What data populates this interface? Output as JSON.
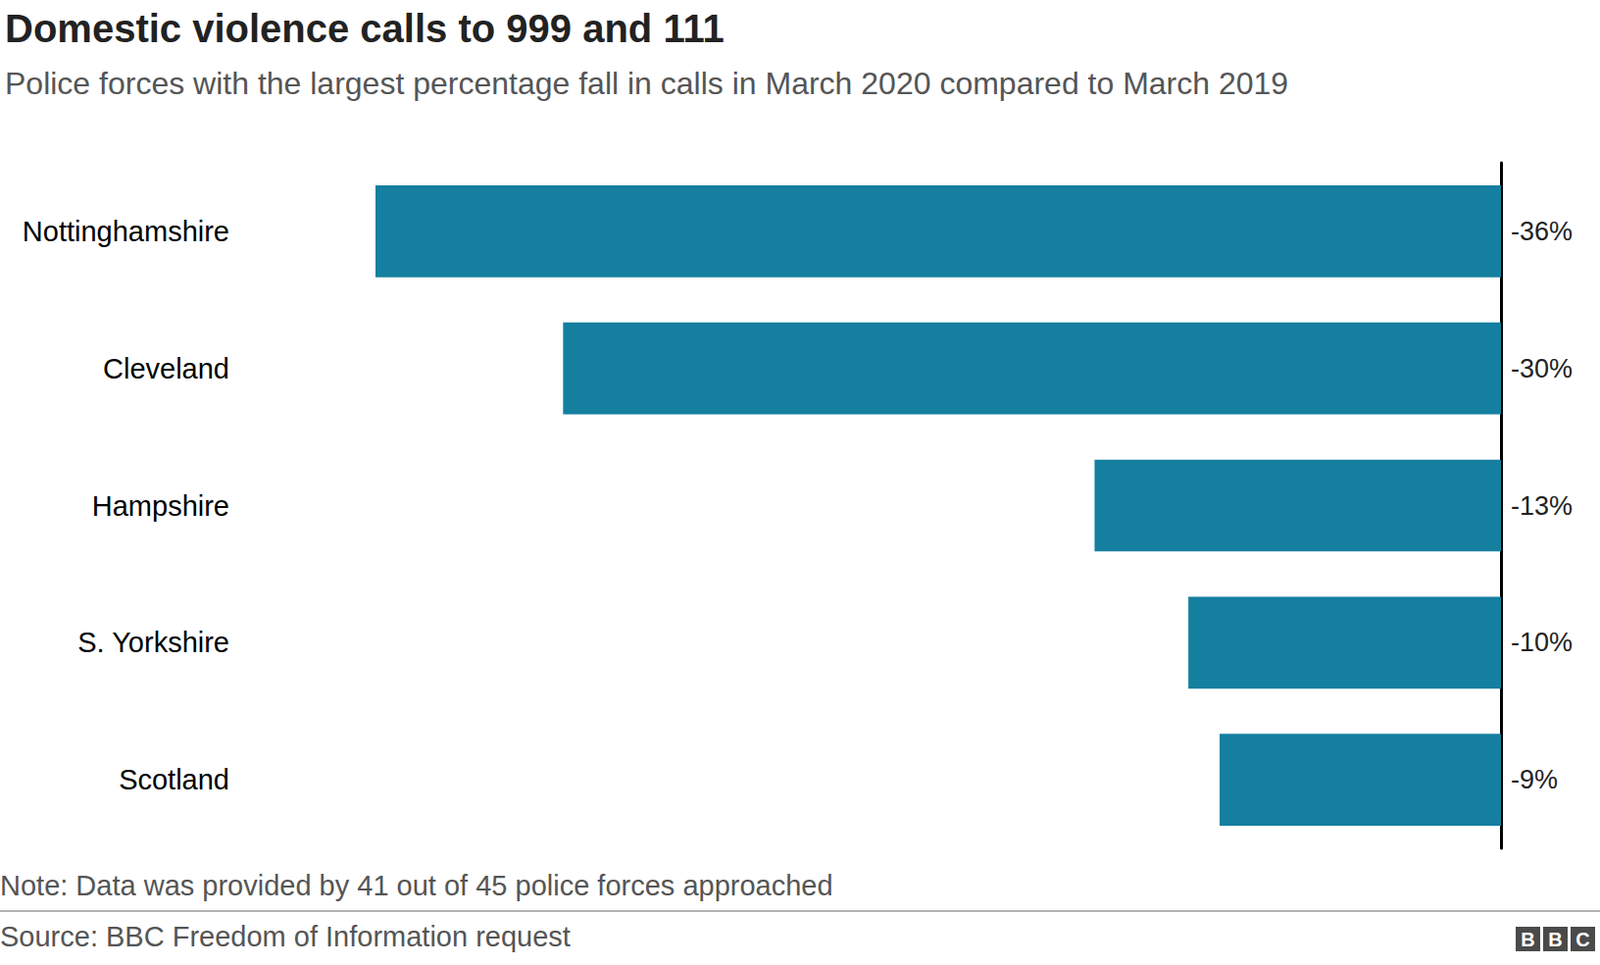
{
  "chart_data": {
    "type": "bar",
    "orientation": "horizontal",
    "title": "Domestic violence calls to 999 and 111",
    "subtitle": "Police forces with the largest percentage fall in calls in March 2020 compared to March 2019",
    "categories": [
      "Nottinghamshire",
      "Cleveland",
      "Hampshire",
      "S. Yorkshire",
      "Scotland"
    ],
    "values": [
      -36,
      -30,
      -13,
      -10,
      -9
    ],
    "value_labels": [
      "-36%",
      "-30%",
      "-13%",
      "-10%",
      "-9%"
    ],
    "data_labels": true,
    "color": "#157fa0",
    "xlim": [
      -36,
      0
    ],
    "tick_labels": "y",
    "grid": false,
    "note": "Note: Data was provided by 41 out of 45 police forces approached",
    "source": "Source: BBC Freedom of Information request",
    "logo": "BBC"
  }
}
